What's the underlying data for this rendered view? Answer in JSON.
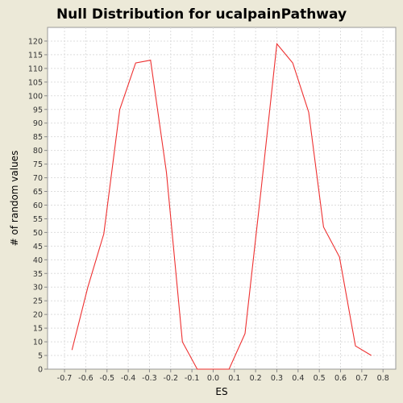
{
  "chart_data": {
    "type": "line",
    "title": "Null Distribution for ucalpainPathway",
    "xlabel": "ES",
    "ylabel": "# of random values",
    "xlim": [
      -0.78,
      0.86
    ],
    "ylim": [
      0,
      125
    ],
    "x_ticks": [
      -0.7,
      -0.6,
      -0.5,
      -0.4,
      -0.3,
      -0.2,
      -0.1,
      0.0,
      0.1,
      0.2,
      0.3,
      0.4,
      0.5,
      0.6,
      0.7,
      0.8
    ],
    "x_tick_labels": [
      "-0.7",
      "-0.6",
      "-0.5",
      "-0.4",
      "-0.3",
      "-0.2",
      "-0.1",
      "0.0",
      "0.1",
      "0.2",
      "0.3",
      "0.4",
      "0.5",
      "0.6",
      "0.7",
      "0.8"
    ],
    "y_ticks": [
      0,
      5,
      10,
      15,
      20,
      25,
      30,
      35,
      40,
      45,
      50,
      55,
      60,
      65,
      70,
      75,
      80,
      85,
      90,
      95,
      100,
      105,
      110,
      115,
      120
    ],
    "y_tick_labels": [
      "0",
      "5",
      "10",
      "15",
      "20",
      "25",
      "30",
      "35",
      "40",
      "45",
      "50",
      "55",
      "60",
      "65",
      "70",
      "75",
      "80",
      "85",
      "90",
      "95",
      "100",
      "105",
      "110",
      "115",
      "120"
    ],
    "grid": true,
    "series": [
      {
        "x": [
          -0.665,
          -0.59,
          -0.515,
          -0.44,
          -0.365,
          -0.295,
          -0.22,
          -0.145,
          -0.075,
          0.0,
          0.075,
          0.15,
          0.225,
          0.3,
          0.375,
          0.45,
          0.52,
          0.595,
          0.67,
          0.745
        ],
        "values": [
          7,
          30,
          49.5,
          95,
          112,
          113,
          72,
          10,
          0,
          0,
          0,
          13,
          65,
          119,
          112,
          94,
          52,
          41,
          8.5,
          5
        ],
        "color": "#EE3030"
      }
    ]
  }
}
